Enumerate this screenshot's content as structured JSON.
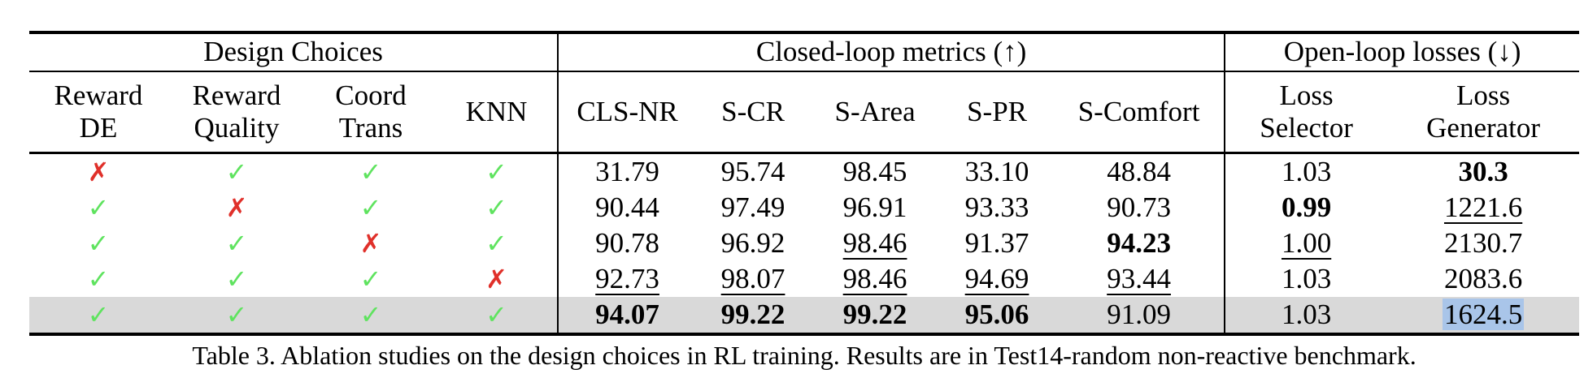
{
  "table": {
    "group_headers": [
      "Design Choices",
      "Closed-loop metrics (↑)",
      "Open-loop losses (↓)"
    ],
    "sub_headers": [
      [
        "Reward",
        "DE"
      ],
      [
        "Reward",
        "Quality"
      ],
      [
        "Coord",
        "Trans"
      ],
      [
        "KNN"
      ],
      [
        "CLS-NR"
      ],
      [
        "S-CR"
      ],
      [
        "S-Area"
      ],
      [
        "S-PR"
      ],
      [
        "S-Comfort"
      ],
      [
        "Loss",
        "Selector"
      ],
      [
        "Loss",
        "Generator"
      ]
    ],
    "rows": [
      {
        "design": [
          "✗",
          "✓",
          "✓",
          "✓"
        ],
        "values": [
          "31.79",
          "95.74",
          "98.45",
          "33.10",
          "48.84",
          "1.03",
          "30.3"
        ]
      },
      {
        "design": [
          "✓",
          "✗",
          "✓",
          "✓"
        ],
        "values": [
          "90.44",
          "97.49",
          "96.91",
          "93.33",
          "90.73",
          "0.99",
          "1221.6"
        ]
      },
      {
        "design": [
          "✓",
          "✓",
          "✗",
          "✓"
        ],
        "values": [
          "90.78",
          "96.92",
          "98.46",
          "91.37",
          "94.23",
          "1.00",
          "2130.7"
        ]
      },
      {
        "design": [
          "✓",
          "✓",
          "✓",
          "✗"
        ],
        "values": [
          "92.73",
          "98.07",
          "98.46",
          "94.69",
          "93.44",
          "1.03",
          "2083.6"
        ]
      },
      {
        "design": [
          "✓",
          "✓",
          "✓",
          "✓"
        ],
        "values": [
          "94.07",
          "99.22",
          "99.22",
          "95.06",
          "91.09",
          "1.03",
          "1624.5"
        ]
      }
    ]
  },
  "caption": "Table 3. Ablation studies on the design choices in RL training. Results are in Test14-random non-reactive benchmark.",
  "colors": {
    "check": "#5fe35f",
    "cross": "#e0302a",
    "highlight_row": "#d9d9d9",
    "selected_cell": "#a9c5e9"
  }
}
